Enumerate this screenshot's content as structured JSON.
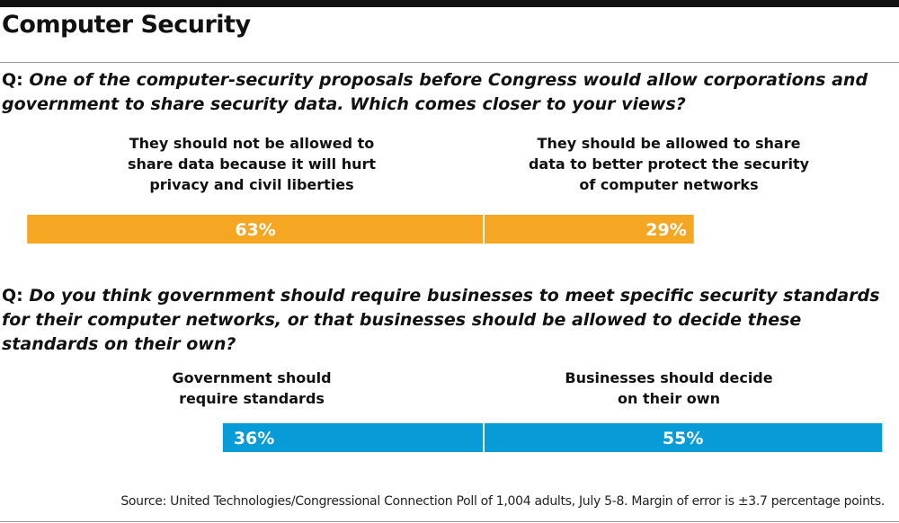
{
  "title": "Computer Security",
  "colors": {
    "q1_bar": "#f5a623",
    "q2_bar": "#079bd8",
    "bar_text": "#ffffff",
    "divider": "#ffffff"
  },
  "q1": {
    "prefix": "Q: ",
    "text": "One of the computer-security proposals before Congress would allow corporations and government to share security data. Which comes closer to your views?"
  },
  "q2": {
    "prefix": "Q: ",
    "text": "Do you think government should require businesses to meet specific security standards for their computer networks, or that businesses should be allowed to decide these standards on their own?"
  },
  "chart_data": [
    {
      "type": "bar",
      "orientation": "horizontal-diverging",
      "categories": [
        "They should not be allowed to share data because it will hurt privacy and civil liberties",
        "They should be allowed to share data to better protect the security of computer networks"
      ],
      "values": [
        63,
        29
      ],
      "labels": [
        "63%",
        "29%"
      ],
      "color": "#f5a623"
    },
    {
      "type": "bar",
      "orientation": "horizontal-diverging",
      "categories": [
        "Government should require standards",
        "Businesses should decide on their own"
      ],
      "values": [
        36,
        55
      ],
      "labels": [
        "36%",
        "55%"
      ],
      "color": "#079bd8"
    }
  ],
  "labels": {
    "q1_left": "They should not be allowed to\nshare data because it will hurt\nprivacy and civil liberties",
    "q1_right": "They should be allowed to share\ndata to better protect the security\nof computer networks",
    "q2_left": "Government should\nrequire standards",
    "q2_right": "Businesses should decide\non their own"
  },
  "source": "Source: United Technologies/Congressional Connection Poll of 1,004 adults, July 5-8. Margin of error is ±3.7 percentage points."
}
